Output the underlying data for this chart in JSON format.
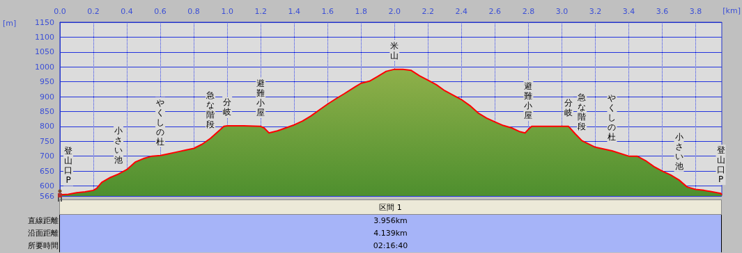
{
  "chart_data": {
    "type": "area",
    "xlabel": "[km]",
    "ylabel": "[m]",
    "x": [
      0,
      0.05,
      0.1,
      0.15,
      0.2,
      0.22,
      0.25,
      0.3,
      0.35,
      0.4,
      0.45,
      0.5,
      0.55,
      0.6,
      0.65,
      0.7,
      0.75,
      0.8,
      0.85,
      0.9,
      0.95,
      0.98,
      1.0,
      1.1,
      1.2,
      1.22,
      1.25,
      1.3,
      1.35,
      1.4,
      1.45,
      1.5,
      1.55,
      1.6,
      1.65,
      1.7,
      1.75,
      1.8,
      1.85,
      1.9,
      1.95,
      2.0,
      2.05,
      2.1,
      2.15,
      2.2,
      2.25,
      2.3,
      2.35,
      2.4,
      2.45,
      2.5,
      2.55,
      2.6,
      2.65,
      2.7,
      2.75,
      2.78,
      2.8,
      2.82,
      2.9,
      3.0,
      3.04,
      3.08,
      3.12,
      3.2,
      3.3,
      3.4,
      3.45,
      3.5,
      3.55,
      3.6,
      3.65,
      3.7,
      3.75,
      3.8,
      3.85,
      3.9,
      3.95,
      3.956
    ],
    "series": [
      {
        "color": "#ff0000",
        "values": [
          570,
          572,
          577,
          580,
          585,
          592,
          612,
          628,
          640,
          655,
          680,
          692,
          700,
          702,
          708,
          714,
          720,
          726,
          740,
          760,
          785,
          800,
          802,
          802,
          800,
          795,
          778,
          785,
          795,
          805,
          818,
          835,
          855,
          875,
          893,
          910,
          928,
          945,
          952,
          968,
          985,
          992,
          992,
          988,
          970,
          955,
          940,
          920,
          905,
          890,
          870,
          845,
          828,
          815,
          803,
          795,
          782,
          778,
          790,
          800,
          800,
          800,
          800,
          775,
          752,
          730,
          718,
          700,
          700,
          685,
          665,
          650,
          637,
          620,
          596,
          588,
          585,
          580,
          575,
          570
        ]
      }
    ],
    "xlim": [
      0,
      3.956
    ],
    "xticks": [
      {
        "value": 0,
        "label": "0.0"
      },
      0.2,
      0.4,
      0.6,
      0.8,
      {
        "value": 1,
        "label": "1.0"
      },
      1.2,
      1.4,
      1.6,
      1.8,
      {
        "value": 2,
        "label": "2.0"
      },
      2.2,
      2.4,
      2.6,
      2.8,
      {
        "value": 3,
        "label": "3.0"
      },
      3.2,
      3.4,
      3.6,
      3.8
    ],
    "ylim": [
      566,
      1150
    ],
    "yticks": [
      566,
      600,
      650,
      700,
      750,
      800,
      850,
      900,
      950,
      1000,
      1050,
      1100,
      1150
    ],
    "grid": true,
    "annotations": [
      {
        "text": "登山口P",
        "x": 0.05,
        "y": 572
      },
      {
        "text": "小さい池",
        "x": 0.35,
        "y": 640
      },
      {
        "text": "やくしの杜",
        "x": 0.6,
        "y": 702
      },
      {
        "text": "急な階段",
        "x": 0.9,
        "y": 760
      },
      {
        "text": "分岐",
        "x": 1.0,
        "y": 802
      },
      {
        "text": "避難小屋",
        "x": 1.2,
        "y": 800
      },
      {
        "text": "米山",
        "x": 2.0,
        "y": 992
      },
      {
        "text": "避難小屋",
        "x": 2.8,
        "y": 790
      },
      {
        "text": "分岐",
        "x": 3.04,
        "y": 800
      },
      {
        "text": "急な階段",
        "x": 3.12,
        "y": 752
      },
      {
        "text": "やくしの杜",
        "x": 3.3,
        "y": 718
      },
      {
        "text": "小さい池",
        "x": 3.7,
        "y": 620
      },
      {
        "text": "登山口P",
        "x": 3.95,
        "y": 575
      },
      "区間 1",
      "直線距離",
      "3.956km",
      "沿面距離",
      "4.139km",
      "所要時間",
      "02:16:40"
    ]
  }
}
